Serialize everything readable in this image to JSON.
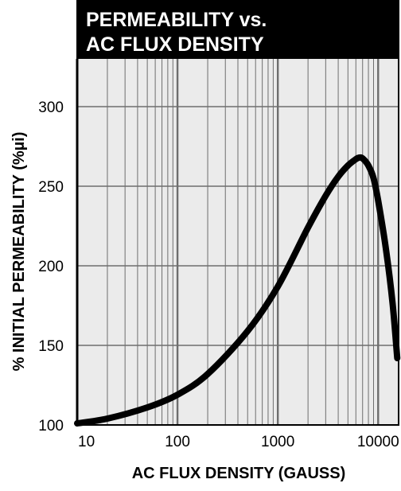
{
  "chart_data": {
    "type": "line",
    "title_lines": [
      "PERMEABILITY vs.",
      "AC FLUX DENSITY"
    ],
    "xlabel": "AC FLUX DENSITY (GAUSS)",
    "ylabel": "% INITIAL PERMEABILITY (%µi)",
    "x_scale": "log",
    "xlim": [
      10,
      16000
    ],
    "ylim": [
      100,
      330
    ],
    "x_ticks": [
      {
        "value": 10,
        "label": "10"
      },
      {
        "value": 100,
        "label": "100"
      },
      {
        "value": 1000,
        "label": "1000"
      },
      {
        "value": 10000,
        "label": "10000"
      }
    ],
    "y_ticks": [
      {
        "value": 100,
        "label": "100"
      },
      {
        "value": 150,
        "label": "150"
      },
      {
        "value": 200,
        "label": "200"
      },
      {
        "value": 250,
        "label": "250"
      },
      {
        "value": 300,
        "label": "300"
      }
    ],
    "grid": true,
    "series": [
      {
        "color": "#000000",
        "x": [
          10,
          20,
          50,
          100,
          200,
          500,
          1000,
          2000,
          3000,
          4000,
          5000,
          6000,
          6500,
          7000,
          8000,
          9000,
          10000,
          12000,
          14000,
          15500
        ],
        "y": [
          101,
          104,
          111,
          119,
          132,
          159,
          187,
          224,
          244,
          256,
          263,
          267,
          268,
          267.5,
          263,
          255,
          241,
          210,
          175,
          142
        ]
      }
    ]
  }
}
